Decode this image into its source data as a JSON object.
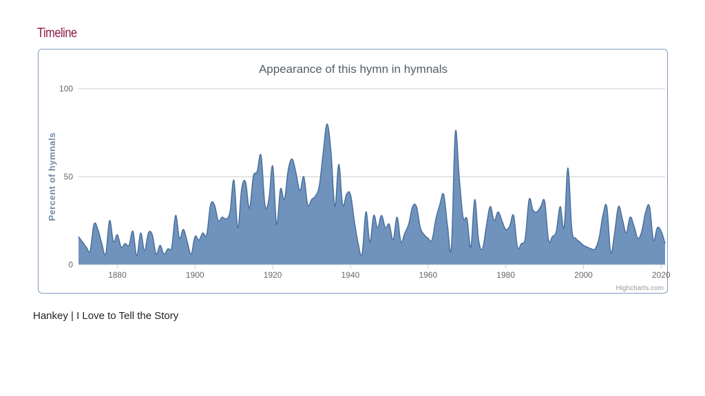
{
  "page": {
    "section_title": "Timeline",
    "caption": "Hankey | I Love to Tell the Story",
    "credit": "Highcharts.com"
  },
  "colors": {
    "section_title": "#8b1a4a",
    "area_fill": "#6f93bd",
    "area_line": "#4a6f9c",
    "grid": "#c8c8c8",
    "frame_border": "#7b9bbf"
  },
  "chart_data": {
    "type": "area",
    "title": "Appearance of this hymn in hymnals",
    "xlabel": "",
    "ylabel": "Percent of hymnals",
    "xlim": [
      1870,
      2021
    ],
    "ylim": [
      0,
      100
    ],
    "x_ticks": [
      "1880",
      "1900",
      "1920",
      "1940",
      "1960",
      "1980",
      "2000",
      "2020"
    ],
    "y_ticks": [
      "0",
      "50",
      "100"
    ],
    "grid": true,
    "legend": "none",
    "series": [
      {
        "x": [
          1870,
          1871,
          1872,
          1873,
          1874,
          1875,
          1876,
          1877,
          1878,
          1879,
          1880,
          1881,
          1882,
          1883,
          1884,
          1885,
          1886,
          1887,
          1888,
          1889,
          1890,
          1891,
          1892,
          1893,
          1894,
          1895,
          1896,
          1897,
          1898,
          1899,
          1900,
          1901,
          1902,
          1903,
          1904,
          1905,
          1906,
          1907,
          1908,
          1909,
          1910,
          1911,
          1912,
          1913,
          1914,
          1915,
          1916,
          1917,
          1918,
          1919,
          1920,
          1921,
          1922,
          1923,
          1924,
          1925,
          1926,
          1927,
          1928,
          1929,
          1930,
          1931,
          1932,
          1933,
          1934,
          1935,
          1936,
          1937,
          1938,
          1939,
          1940,
          1941,
          1942,
          1943,
          1944,
          1945,
          1946,
          1947,
          1948,
          1949,
          1950,
          1951,
          1952,
          1953,
          1954,
          1955,
          1956,
          1957,
          1958,
          1959,
          1960,
          1961,
          1962,
          1963,
          1964,
          1965,
          1966,
          1967,
          1968,
          1969,
          1970,
          1971,
          1972,
          1973,
          1974,
          1975,
          1976,
          1977,
          1978,
          1979,
          1980,
          1981,
          1982,
          1983,
          1984,
          1985,
          1986,
          1987,
          1988,
          1989,
          1990,
          1991,
          1992,
          1993,
          1994,
          1995,
          1996,
          1997,
          1998,
          1999,
          2000,
          2001,
          2002,
          2003,
          2004,
          2005,
          2006,
          2007,
          2008,
          2009,
          2010,
          2011,
          2012,
          2013,
          2014,
          2015,
          2016,
          2017,
          2018,
          2019,
          2020,
          2021
        ],
        "values": [
          16,
          13,
          10,
          8,
          23,
          20,
          12,
          6,
          25,
          13,
          17,
          10,
          12,
          11,
          19,
          5,
          18,
          8,
          18,
          17,
          6,
          11,
          6,
          9,
          10,
          28,
          15,
          20,
          13,
          6,
          16,
          14,
          18,
          17,
          34,
          34,
          25,
          27,
          26,
          30,
          48,
          21,
          43,
          47,
          32,
          50,
          53,
          62,
          34,
          37,
          56,
          23,
          43,
          37,
          54,
          60,
          52,
          42,
          50,
          34,
          37,
          39,
          45,
          64,
          80,
          64,
          33,
          57,
          34,
          40,
          40,
          25,
          12,
          6,
          30,
          13,
          28,
          21,
          28,
          21,
          23,
          14,
          27,
          13,
          18,
          23,
          33,
          33,
          21,
          17,
          15,
          14,
          26,
          34,
          40,
          22,
          10,
          75,
          50,
          27,
          26,
          10,
          37,
          14,
          9,
          22,
          33,
          25,
          30,
          25,
          20,
          22,
          28,
          10,
          12,
          15,
          37,
          31,
          30,
          33,
          36,
          14,
          16,
          19,
          33,
          21,
          55,
          20,
          15,
          13,
          11,
          10,
          9,
          9,
          15,
          28,
          33,
          7,
          18,
          33,
          26,
          18,
          27,
          22,
          15,
          19,
          30,
          33,
          14,
          21,
          19,
          12
        ]
      }
    ]
  }
}
